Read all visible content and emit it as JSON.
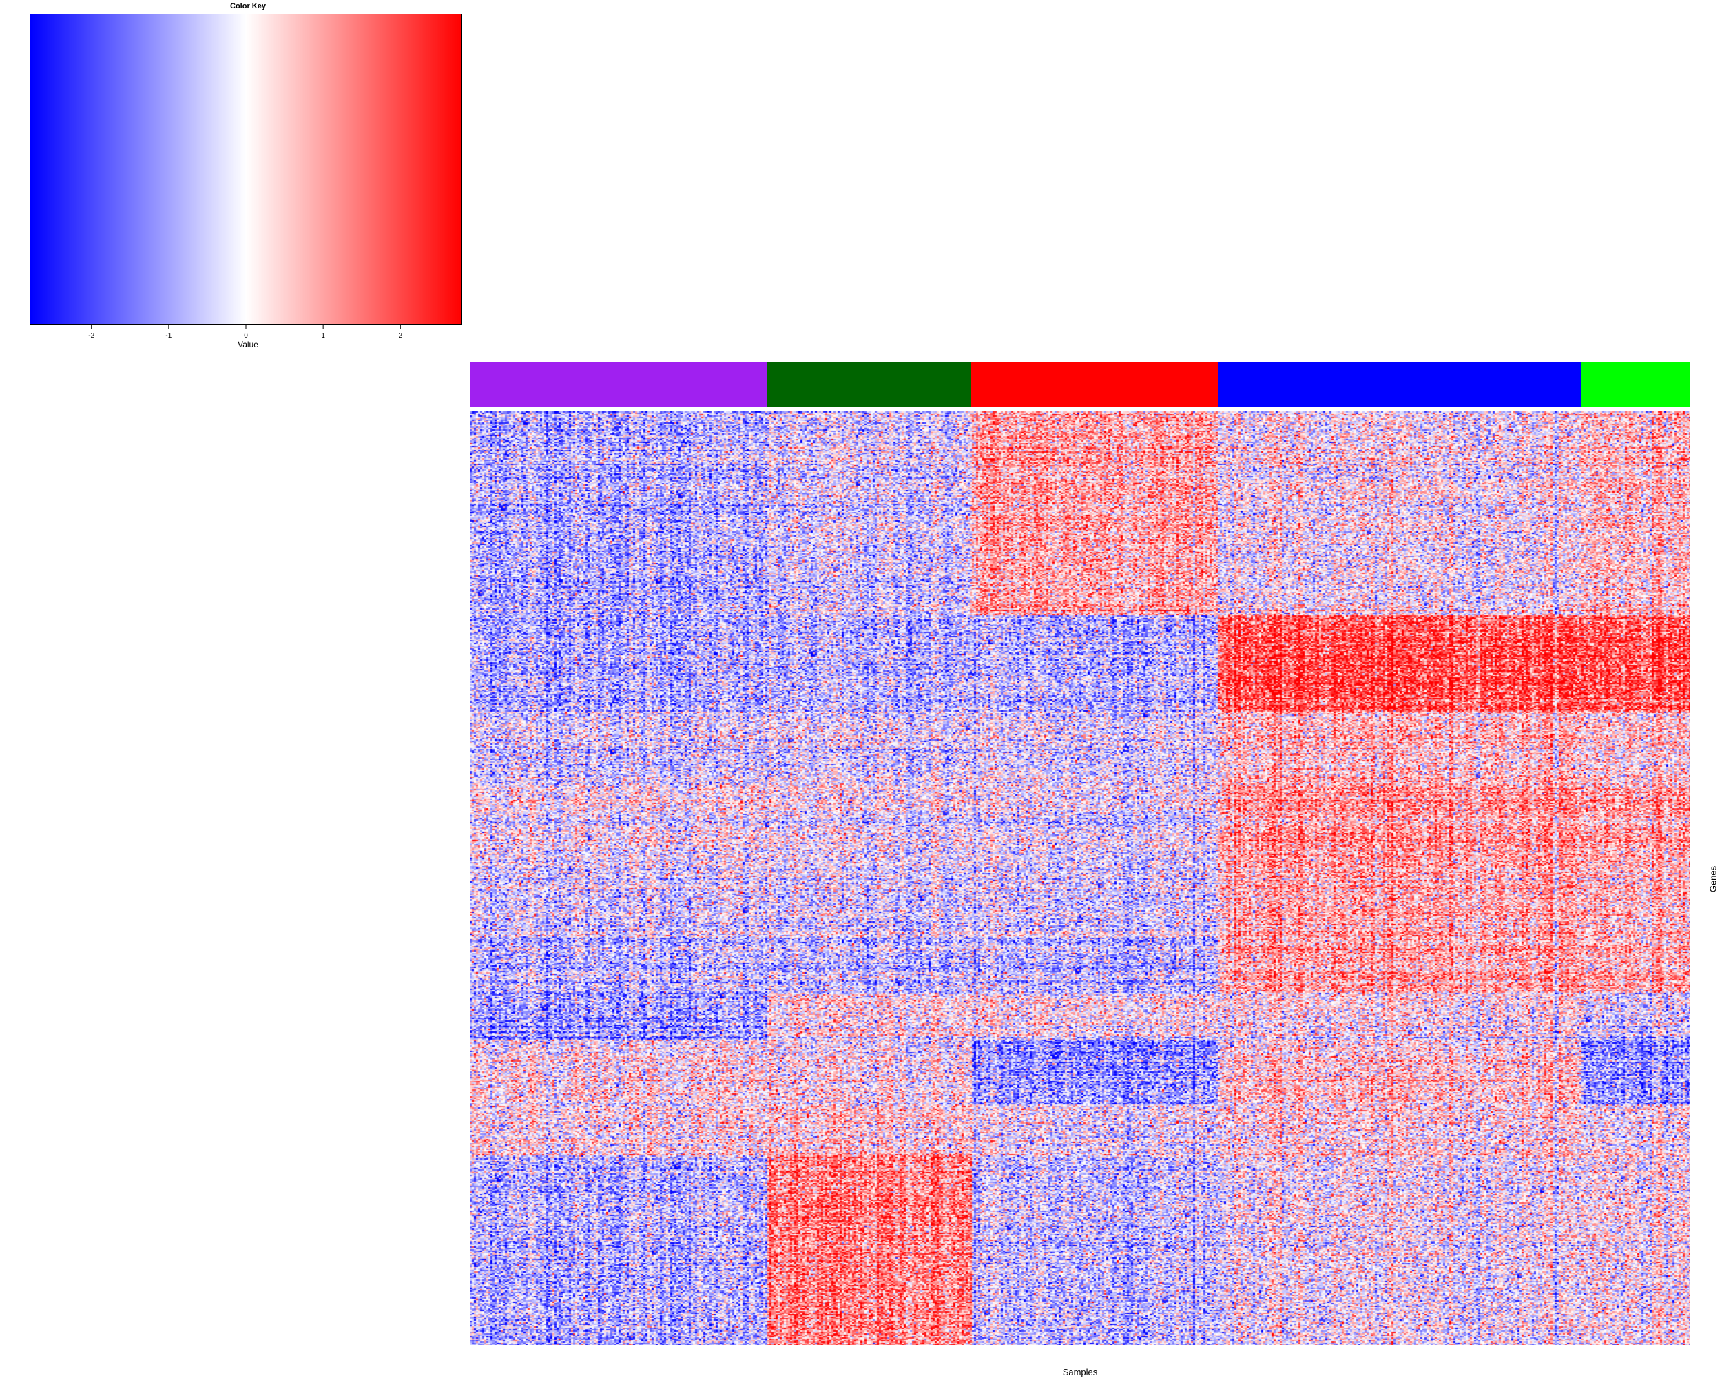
{
  "chart_data": [
    {
      "type": "area",
      "title": "Color Key",
      "xlabel": "Value",
      "xlim": [
        -2.8,
        2.8
      ],
      "ticks": [
        -2,
        -1,
        0,
        1,
        2
      ],
      "tick_labels": [
        "-2",
        "-1",
        "0",
        "1",
        "2"
      ],
      "palette": [
        "#0000ff",
        "#ffffff",
        "#ff0000"
      ]
    },
    {
      "type": "heatmap",
      "xlabel": "Samples",
      "ylabel": "Genes",
      "group_colors": [
        "#a020f0",
        "#006400",
        "#ff0000",
        "#0000ff",
        "#00ff00"
      ],
      "group_sample_fractions": [
        0.243,
        0.168,
        0.202,
        0.298,
        0.089
      ],
      "gene_block_fractions": [
        0.218,
        0.103,
        0.081,
        0.087,
        0.075,
        0.059,
        0.049,
        0.07,
        0.055,
        0.203
      ],
      "block_mean_z": [
        [
          -0.8,
          -0.4,
          0.9,
          0.0,
          0.6
        ],
        [
          -0.9,
          -0.8,
          -0.8,
          1.9,
          1.9
        ],
        [
          -0.4,
          -0.3,
          -0.3,
          0.6,
          0.4
        ],
        [
          0.0,
          -0.1,
          -0.2,
          1.1,
          1.0
        ],
        [
          -0.3,
          -0.3,
          -0.3,
          0.9,
          0.7
        ],
        [
          -0.6,
          -0.6,
          -0.6,
          1.0,
          0.9
        ],
        [
          -1.0,
          0.2,
          0.1,
          0.1,
          -0.3
        ],
        [
          0.1,
          0.0,
          -1.2,
          0.4,
          -1.2
        ],
        [
          0.2,
          0.4,
          -0.1,
          0.3,
          0.1
        ],
        [
          -0.8,
          1.3,
          -0.6,
          -0.1,
          0.1
        ]
      ]
    }
  ]
}
